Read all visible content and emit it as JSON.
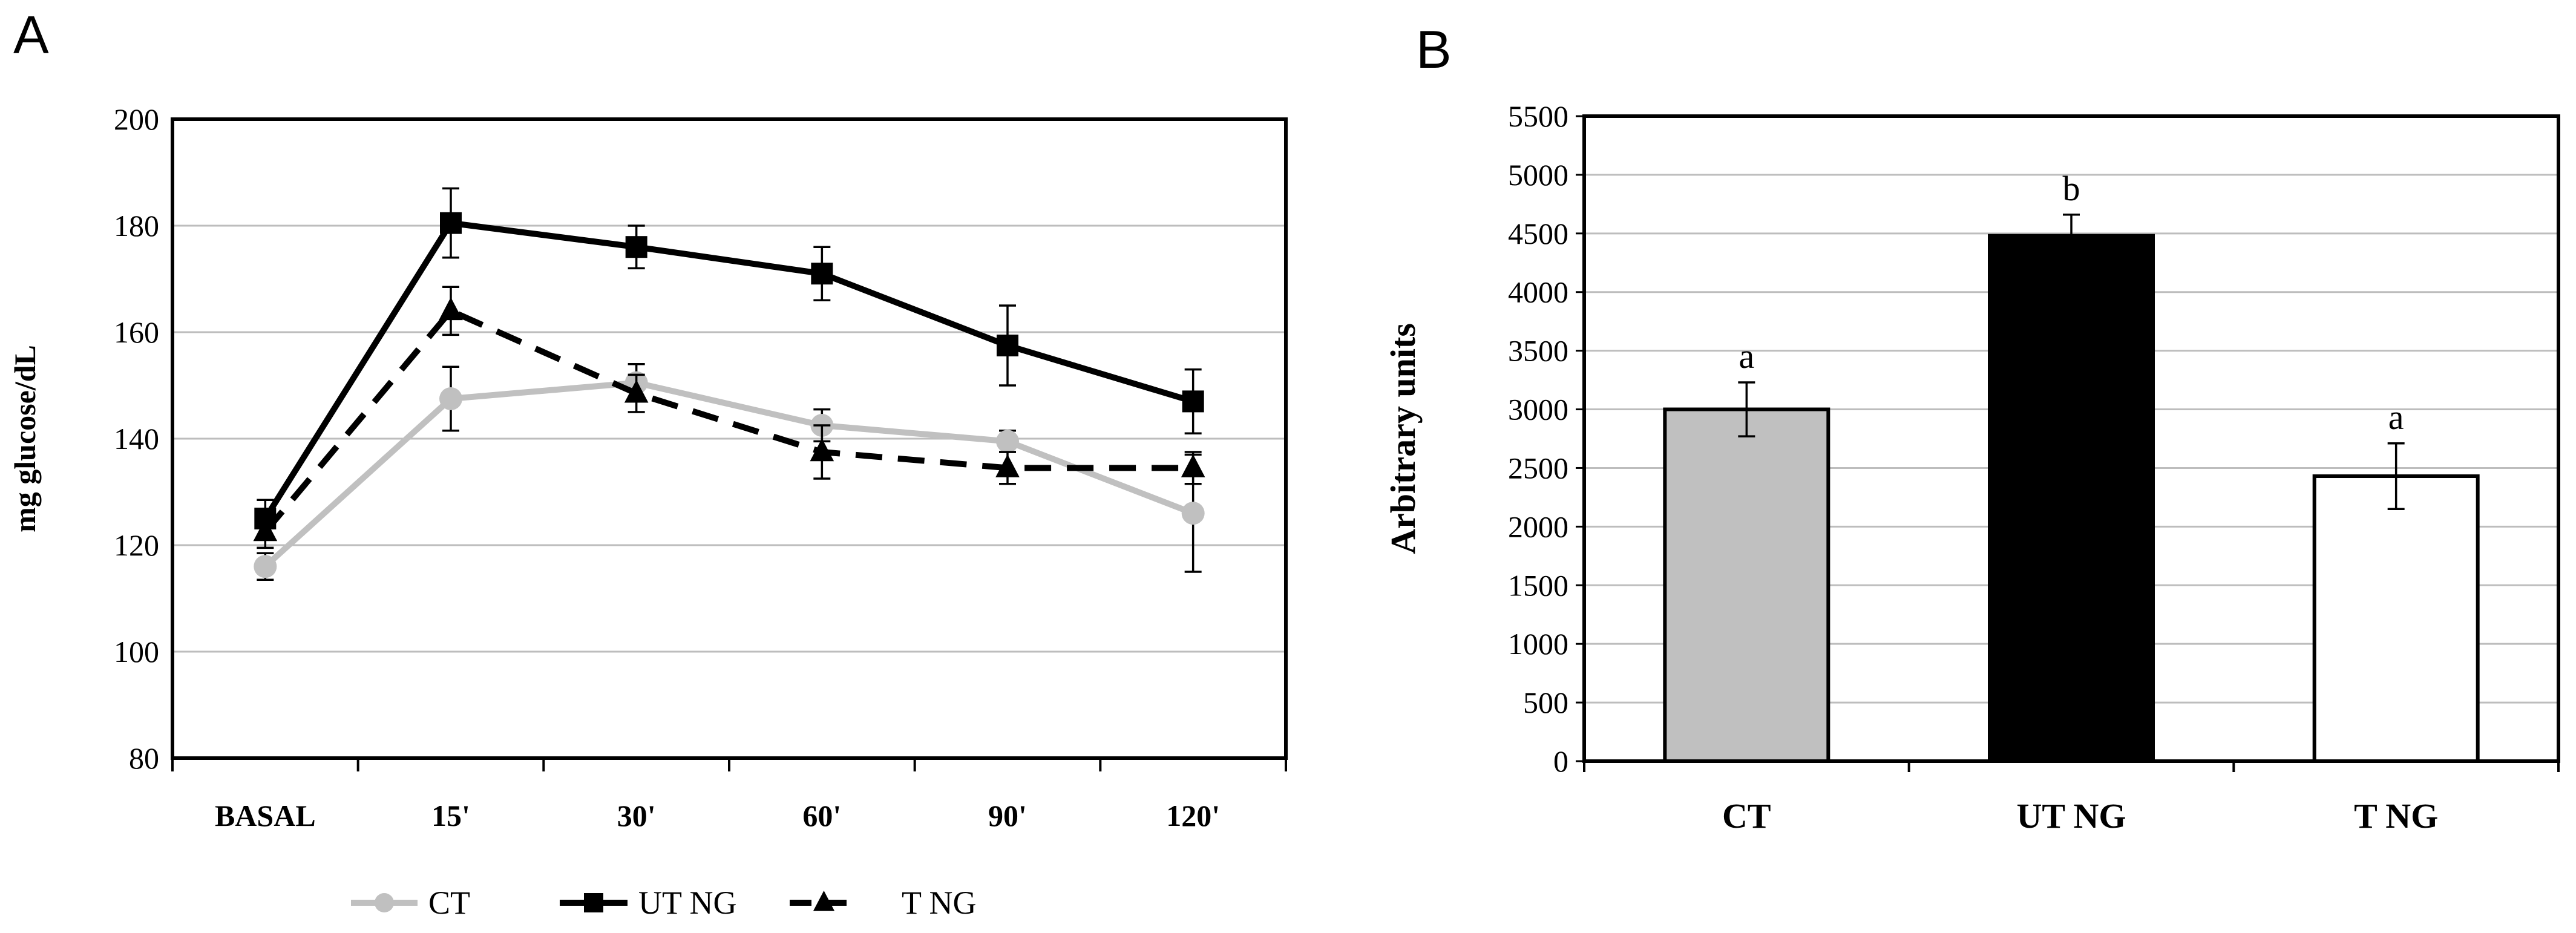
{
  "chart_data": [
    {
      "panel_label": "A",
      "type": "line",
      "ylabel": "mg glucose/dL",
      "xlabel": "",
      "ylim": [
        80,
        200
      ],
      "yticks": [
        80,
        100,
        120,
        140,
        160,
        180,
        200
      ],
      "categories": [
        "BASAL",
        "15'",
        "30'",
        "60'",
        "90'",
        "120'"
      ],
      "grid": true,
      "legend_position": "bottom",
      "series": [
        {
          "name": "CT",
          "color": "#c0c0c0",
          "line_style": "solid",
          "marker": "circle",
          "values": [
            116,
            147.5,
            150.5,
            142.5,
            139.5,
            126
          ],
          "errors": [
            2.5,
            6,
            3.5,
            3,
            2,
            11
          ]
        },
        {
          "name": "UT NG",
          "color": "#000000",
          "line_style": "solid",
          "marker": "square",
          "values": [
            125,
            180.5,
            176,
            171,
            157.5,
            147
          ],
          "errors": [
            3.5,
            6.5,
            4,
            5,
            7.5,
            6
          ]
        },
        {
          "name": "T NG",
          "color": "#000000",
          "line_style": "dashed",
          "marker": "triangle",
          "values": [
            122.5,
            164,
            148.5,
            137.5,
            134.5,
            134.5
          ],
          "errors": [
            3,
            4.5,
            3.5,
            5,
            3,
            3
          ]
        }
      ]
    },
    {
      "panel_label": "B",
      "type": "bar",
      "ylabel": "Arbitrary units",
      "xlabel": "",
      "ylim": [
        0,
        5500
      ],
      "yticks": [
        0,
        500,
        1000,
        1500,
        2000,
        2500,
        3000,
        3500,
        4000,
        4500,
        5000,
        5500
      ],
      "categories": [
        "CT",
        "UT NG",
        "T NG"
      ],
      "values": [
        3000,
        4480,
        2430
      ],
      "errors": [
        230,
        180,
        280
      ],
      "significance_letters": [
        "a",
        "b",
        "a"
      ],
      "bar_colors": [
        "#c0c0c0",
        "#000000",
        "#ffffff"
      ],
      "grid": true
    }
  ]
}
